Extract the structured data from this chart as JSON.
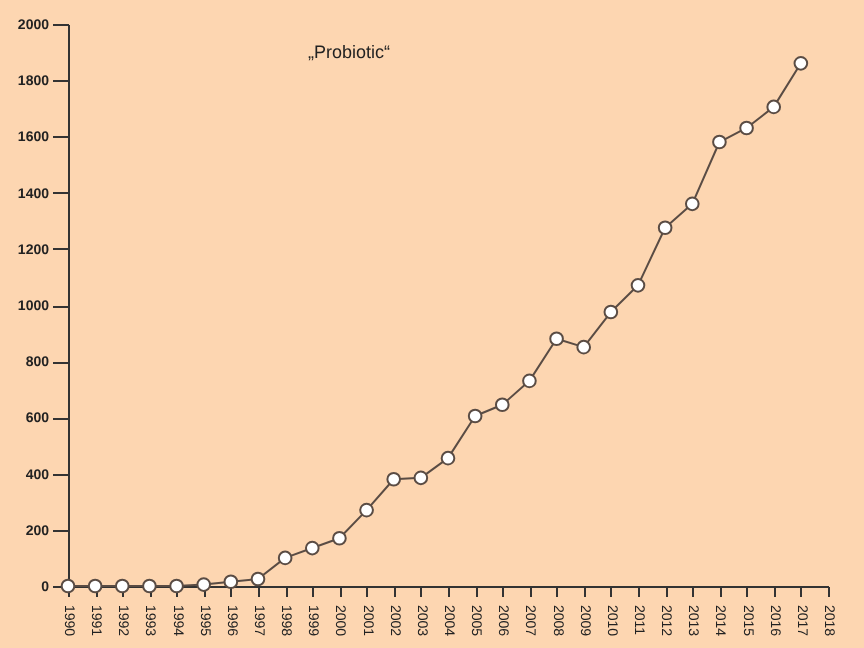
{
  "chart_data": {
    "type": "line",
    "annotations": [
      "„Probiotic“"
    ],
    "x": [
      1990,
      1991,
      1992,
      1993,
      1994,
      1995,
      1996,
      1997,
      1998,
      1999,
      2000,
      2001,
      2002,
      2003,
      2004,
      2005,
      2006,
      2007,
      2008,
      2009,
      2010,
      2011,
      2012,
      2013,
      2014,
      2015,
      2016,
      2017
    ],
    "series": [
      {
        "color": "#5a4c44",
        "values": [
          0,
          0,
          0,
          0,
          0,
          5,
          15,
          25,
          100,
          135,
          170,
          270,
          380,
          385,
          455,
          605,
          645,
          730,
          880,
          850,
          975,
          1070,
          1275,
          1360,
          1580,
          1630,
          1705,
          1860
        ]
      }
    ],
    "xlim": [
      1990,
      2018
    ],
    "xticks": [
      1990,
      1991,
      1992,
      1993,
      1994,
      1995,
      1996,
      1997,
      1998,
      1999,
      2000,
      2001,
      2002,
      2003,
      2004,
      2005,
      2006,
      2007,
      2008,
      2009,
      2010,
      2011,
      2012,
      2013,
      2014,
      2015,
      2016,
      2017,
      2018
    ],
    "ylim": [
      0,
      2000
    ],
    "yticks": [
      0,
      200,
      400,
      600,
      800,
      1000,
      1200,
      1400,
      1600,
      1800,
      2000
    ],
    "grid": false,
    "marker": "circle",
    "line_style": "solid"
  }
}
